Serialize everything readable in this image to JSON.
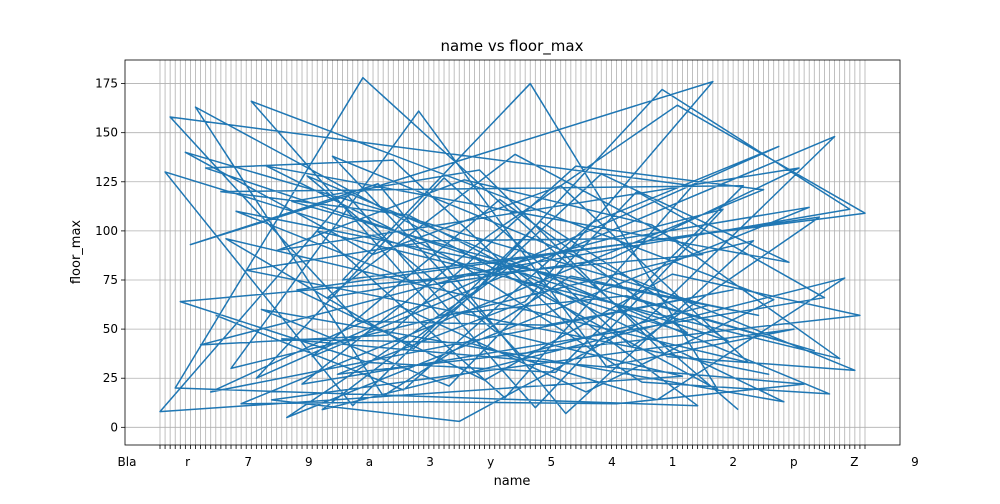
{
  "chart_data": {
    "type": "line",
    "title": "name vs floor_max",
    "xlabel": "name",
    "ylabel": "floor_max",
    "ylim": [
      -9,
      187
    ],
    "grid": true,
    "y_ticks": [
      0,
      25,
      50,
      75,
      100,
      125,
      150,
      175
    ],
    "y_tick_labels": [
      "0",
      "25",
      "50",
      "75",
      "100",
      "125",
      "150",
      "175"
    ],
    "x_category_count": 140,
    "x_tick_labels_legible": [
      "Bla",
      "r",
      "7",
      "9",
      "a",
      "3",
      "y",
      "5",
      "4",
      "1",
      "2",
      "p",
      "Z",
      "9"
    ],
    "series": [
      {
        "color": "#1f77b4",
        "values": [
          8,
          130,
          158,
          20,
          64,
          140,
          93,
          163,
          42,
          132,
          18,
          57,
          120,
          96,
          30,
          110,
          12,
          80,
          166,
          25,
          60,
          133,
          14,
          90,
          45,
          5,
          115,
          70,
          22,
          128,
          36,
          100,
          9,
          66,
          138,
          27,
          75,
          118,
          11,
          54,
          178,
          33,
          88,
          124,
          16,
          47,
          136,
          62,
          19,
          108,
          40,
          161,
          72,
          13,
          95,
          57,
          127,
          21,
          85,
          3,
          126,
          43,
          69,
          131,
          24,
          98,
          49,
          116,
          15,
          82,
          139,
          37,
          64,
          175,
          10,
          105,
          52,
          91,
          28,
          123,
          7,
          77,
          133,
          46,
          18,
          104,
          59,
          129,
          31,
          86,
          12,
          96,
          67,
          41,
          120,
          23,
          55,
          103,
          14,
          172,
          36,
          78,
          164,
          26,
          48,
          123,
          11,
          88,
          62,
          176,
          19,
          111,
          44,
          70,
          9,
          123,
          33,
          95,
          57,
          121,
          27,
          65,
          143,
          13,
          84,
          50,
          132,
          22,
          112,
          39,
          107,
          66,
          17,
          148,
          35,
          76,
          111,
          29,
          57,
          109
        ]
      }
    ]
  }
}
